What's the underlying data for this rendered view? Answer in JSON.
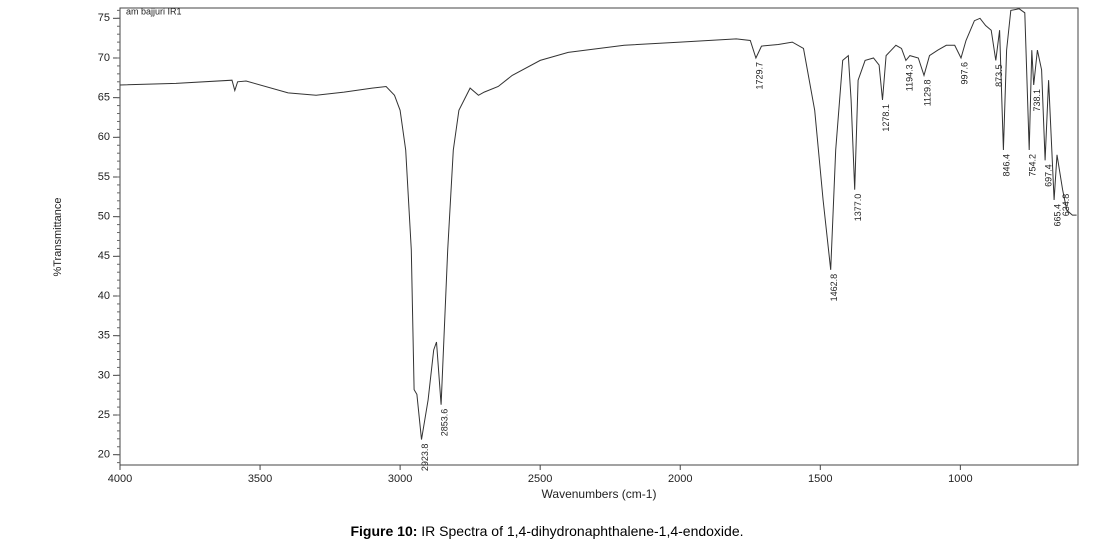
{
  "chart_data": {
    "type": "line",
    "sample_label": "am bajjuri IR1",
    "xlabel": "Wavenumbers (cm-1)",
    "ylabel": "%Transmittance",
    "caption_bold": "Figure 10:",
    "caption": "IR Spectra of 1,4-dihydronaphthalene-1,4-endoxide.",
    "xlim": [
      4000,
      580
    ],
    "ylim": [
      18.7,
      76.3
    ],
    "xticks": [
      4000,
      3500,
      3000,
      2500,
      2000,
      1500,
      1000
    ],
    "yticks": [
      20,
      25,
      30,
      35,
      40,
      45,
      50,
      55,
      60,
      65,
      70,
      75
    ],
    "series": [
      {
        "color": "#333333",
        "x": [
          4000,
          3800,
          3600,
          3590,
          3580,
          3550,
          3400,
          3300,
          3200,
          3100,
          3050,
          3020,
          3000,
          2980,
          2960,
          2950,
          2940,
          2923.8,
          2900,
          2880,
          2870,
          2853.6,
          2830,
          2810,
          2790,
          2750,
          2720,
          2700,
          2650,
          2600,
          2500,
          2400,
          2200,
          2000,
          1800,
          1750,
          1729.7,
          1710,
          1650,
          1600,
          1560,
          1520,
          1490,
          1462.8,
          1445,
          1420,
          1400,
          1390,
          1377.0,
          1365,
          1340,
          1310,
          1290,
          1278.1,
          1265,
          1230,
          1210,
          1194.3,
          1180,
          1150,
          1129.8,
          1110,
          1080,
          1050,
          1020,
          997.6,
          980,
          950,
          930,
          910,
          890,
          873.5,
          860,
          846.4,
          835,
          820,
          790,
          770,
          754.2,
          745,
          738.1,
          725,
          710,
          697.4,
          685,
          665.4,
          655,
          634.8,
          620,
          600,
          585
        ],
        "values": [
          66.6,
          66.8,
          67.2,
          65.9,
          67.0,
          67.1,
          65.6,
          65.3,
          65.7,
          66.2,
          66.4,
          65.3,
          63.4,
          58.4,
          45.8,
          28.2,
          27.6,
          21.9,
          26.9,
          33.2,
          34.2,
          26.3,
          45.8,
          58.4,
          63.4,
          66.2,
          65.3,
          65.7,
          66.4,
          67.8,
          69.7,
          70.7,
          71.6,
          72.0,
          72.4,
          72.2,
          70.0,
          71.5,
          71.7,
          72.0,
          71.2,
          63.4,
          52.1,
          43.3,
          58.4,
          69.7,
          70.3,
          64.7,
          53.4,
          67.2,
          69.7,
          70.0,
          69.1,
          64.7,
          70.3,
          71.6,
          71.2,
          69.7,
          70.3,
          70.0,
          67.8,
          70.3,
          71.0,
          71.6,
          71.6,
          70.0,
          72.2,
          74.7,
          75.0,
          74.1,
          73.5,
          69.7,
          73.5,
          58.4,
          71.0,
          76.0,
          76.2,
          75.7,
          58.4,
          71.0,
          66.6,
          71.0,
          68.5,
          57.1,
          67.2,
          52.1,
          57.8,
          53.4,
          50.8,
          50.2,
          50.2
        ]
      }
    ],
    "annotations": [
      {
        "x": 2923.8,
        "y": 21.9,
        "label": "2923.8"
      },
      {
        "x": 2853.6,
        "y": 26.3,
        "label": "2853.6"
      },
      {
        "x": 1729.7,
        "y": 70.0,
        "label": "1729.7"
      },
      {
        "x": 1462.8,
        "y": 43.3,
        "label": "1462.8"
      },
      {
        "x": 1377.0,
        "y": 53.4,
        "label": "1377.0"
      },
      {
        "x": 1278.1,
        "y": 64.7,
        "label": "1278.1"
      },
      {
        "x": 1194.3,
        "y": 69.7,
        "label": "1194.3"
      },
      {
        "x": 1129.8,
        "y": 67.8,
        "label": "1129.8"
      },
      {
        "x": 997.6,
        "y": 70.0,
        "label": "997.6"
      },
      {
        "x": 873.5,
        "y": 69.7,
        "label": "873.5"
      },
      {
        "x": 846.4,
        "y": 58.4,
        "label": "846.4"
      },
      {
        "x": 754.2,
        "y": 58.4,
        "label": "754.2"
      },
      {
        "x": 738.1,
        "y": 66.6,
        "label": "738.1"
      },
      {
        "x": 697.4,
        "y": 57.1,
        "label": "697.4"
      },
      {
        "x": 665.4,
        "y": 52.1,
        "label": "665.4"
      },
      {
        "x": 634.8,
        "y": 53.4,
        "label": "634.8"
      }
    ]
  }
}
